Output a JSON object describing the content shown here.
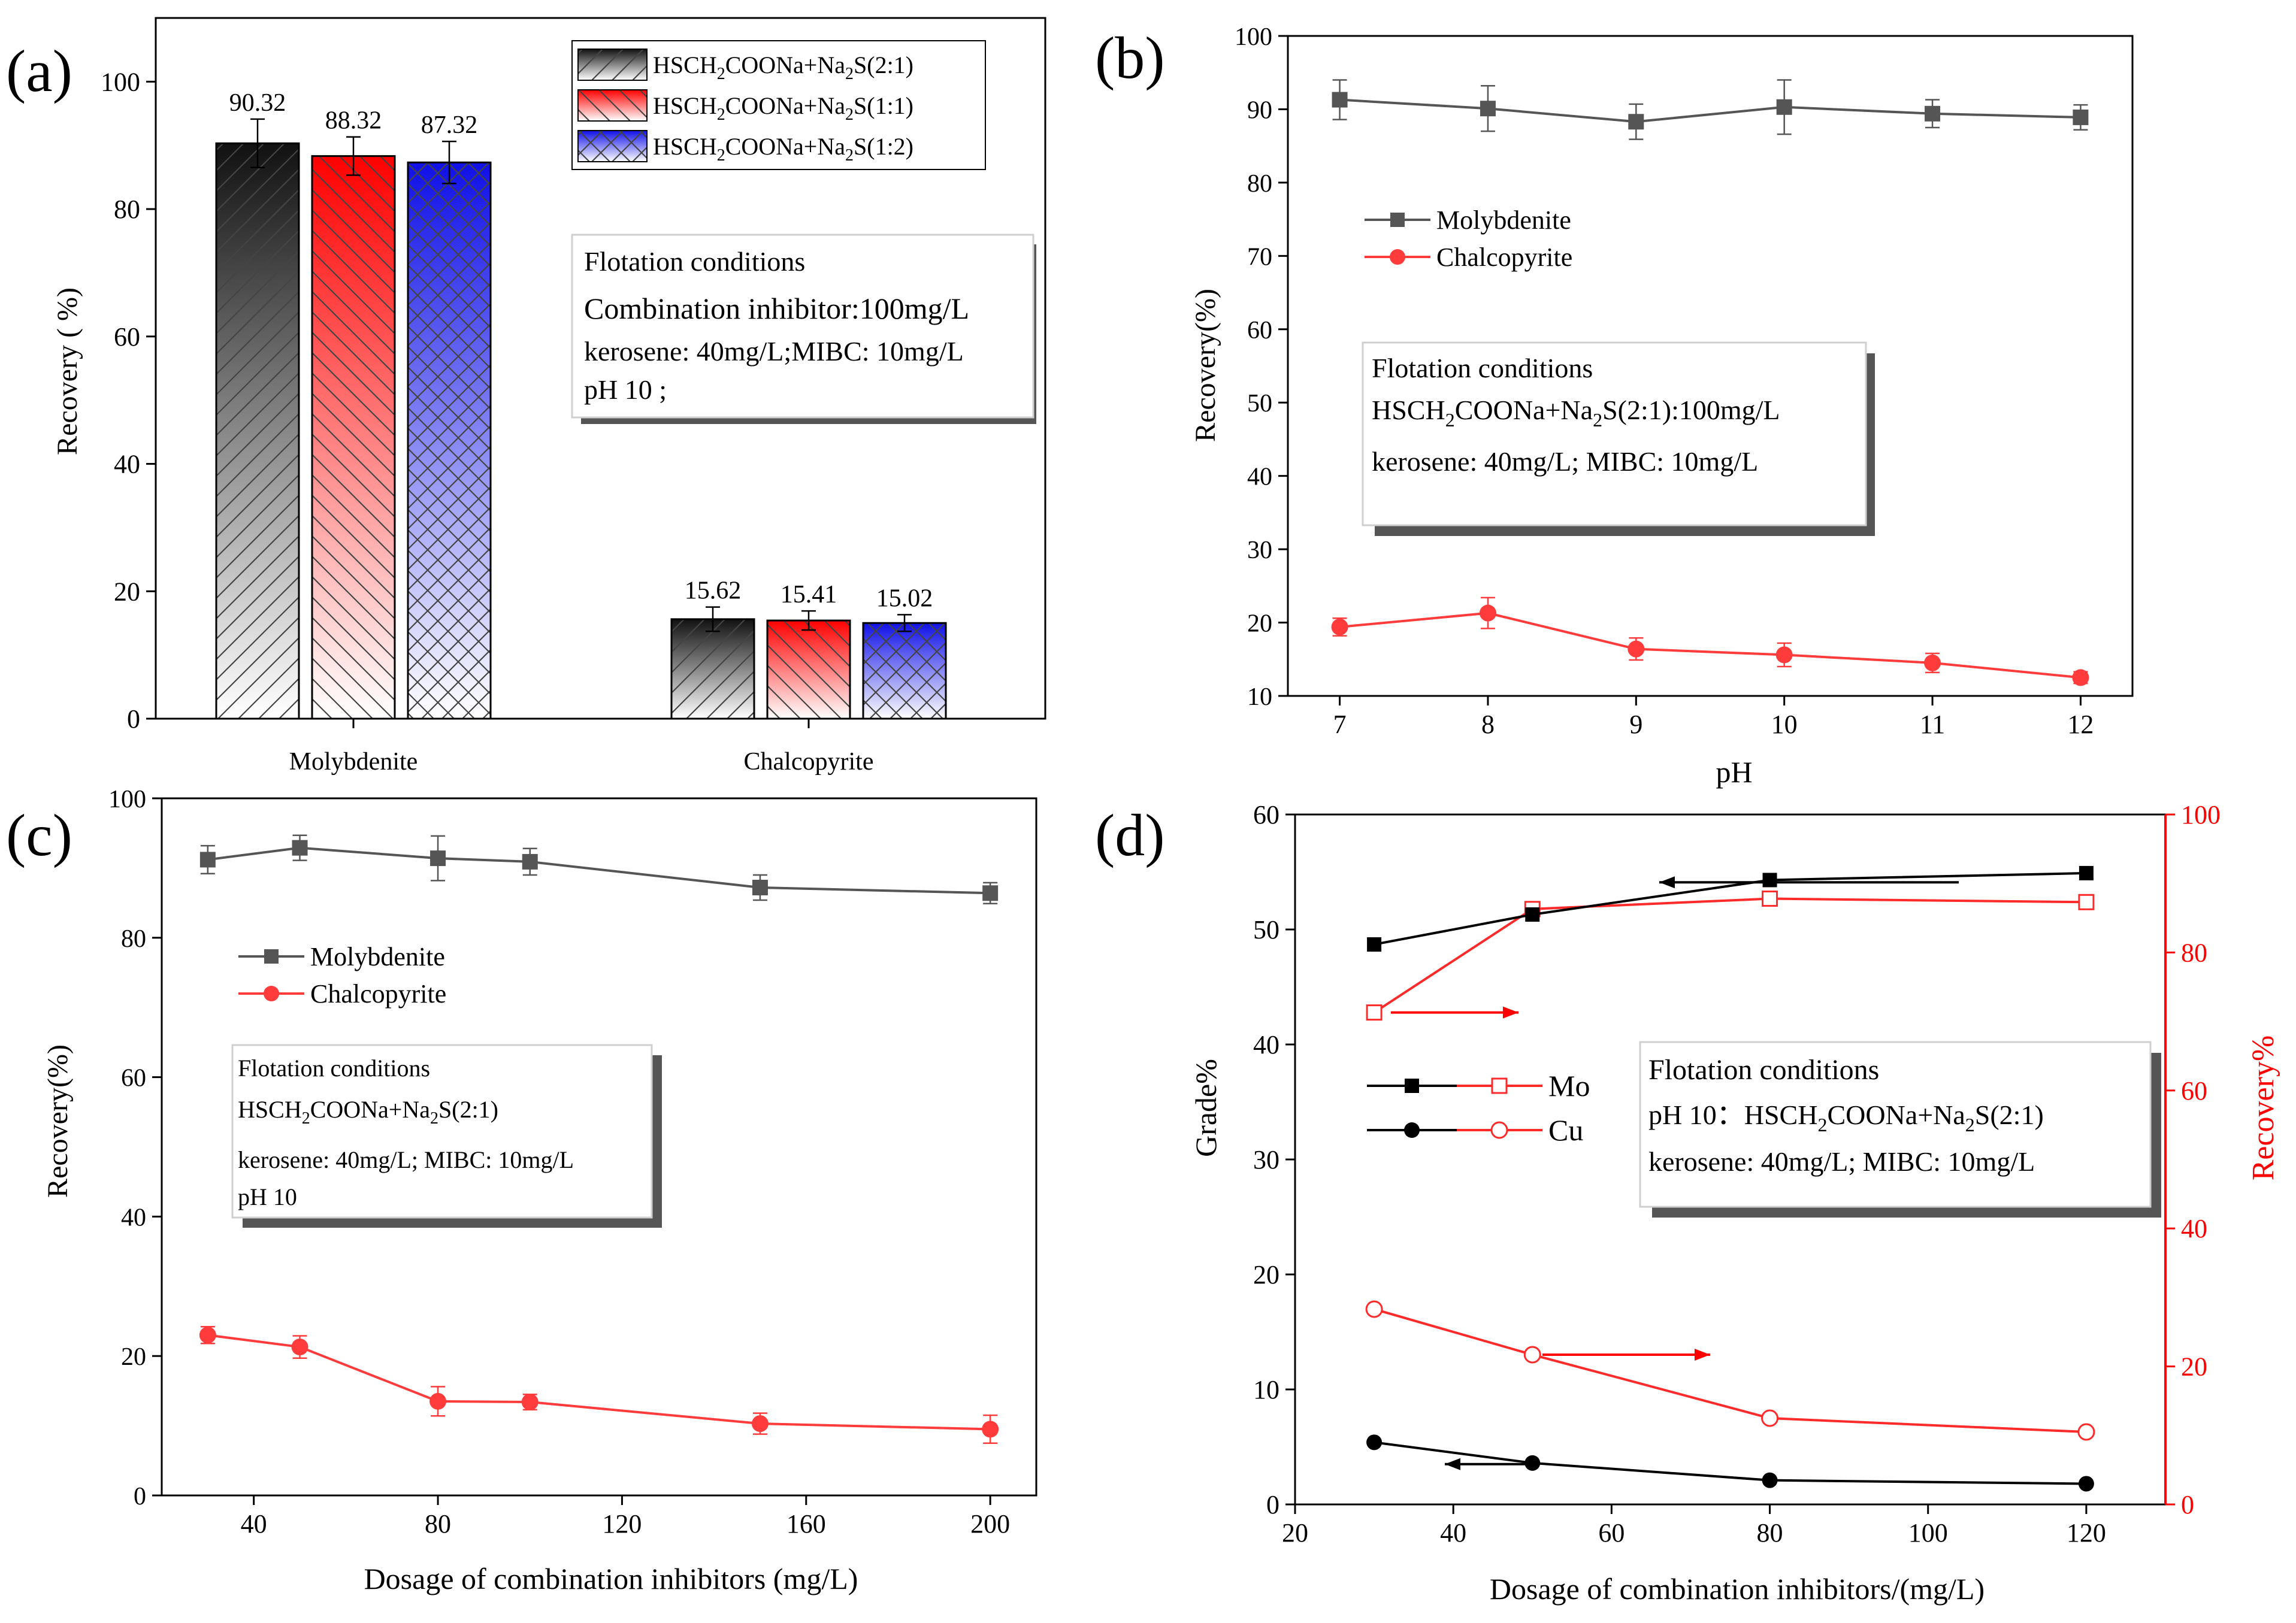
{
  "colors": {
    "axis": "#000000",
    "moly_line": "#555555",
    "chalco_line": "#ff3b3b",
    "red_axis": "#ff0000",
    "grade_line": "#000000",
    "bar_black": "#2b2b2b",
    "bar_red": "#ff2020",
    "bar_blue": "#2020ee"
  },
  "chart_data": [
    {
      "panel": "(a)",
      "type": "bar",
      "xlabel": "",
      "ylabel": "Recovery ( %)",
      "ylim": [
        0,
        110
      ],
      "yticks": [
        0,
        20,
        40,
        60,
        80,
        100
      ],
      "categories": [
        "Molybdenite",
        "Chalcopyrite"
      ],
      "series": [
        {
          "name": "HSCH2COONa+Na2S(2:1)",
          "name_main": "HSCH",
          "name_sub": "2",
          "name_mid": "COONa+Na",
          "name_sub2": "2",
          "name_tail": "S(2:1)",
          "values": [
            90.32,
            15.62
          ],
          "errors": [
            3.8,
            1.9
          ],
          "labels": [
            "90.32",
            "15.62"
          ],
          "color": "#2b2b2b",
          "pattern": "diag-right"
        },
        {
          "name": "HSCH2COONa+Na2S(1:1)",
          "name_main": "HSCH",
          "name_sub": "2",
          "name_mid": "COONa+Na",
          "name_sub2": "2",
          "name_tail": "S(1:1)",
          "values": [
            88.32,
            15.41
          ],
          "errors": [
            3.0,
            1.5
          ],
          "labels": [
            "88.32",
            "15.41"
          ],
          "color": "#ff2020",
          "pattern": "diag-left"
        },
        {
          "name": "HSCH2COONa+Na2S(1:2)",
          "name_main": "HSCH",
          "name_sub": "2",
          "name_mid": "COONa+Na",
          "name_sub2": "2",
          "name_tail": "S(1:2)",
          "values": [
            87.32,
            15.02
          ],
          "errors": [
            3.3,
            1.3
          ],
          "labels": [
            "87.32",
            "15.02"
          ],
          "color": "#2020ee",
          "pattern": "cross"
        }
      ],
      "legend_position": "top-right",
      "conditions_box": [
        "Flotation conditions",
        "Combination inhibitor:100mg/L",
        "kerosene: 40mg/L;MIBC:   10mg/L",
        "pH 10 ;"
      ]
    },
    {
      "panel": "(b)",
      "type": "line",
      "xlabel": "pH",
      "ylabel": "Recovery(%)",
      "xlim": [
        6.65,
        12.35
      ],
      "ylim": [
        10,
        100
      ],
      "xticks": [
        7,
        8,
        9,
        10,
        11,
        12
      ],
      "yticks": [
        10,
        20,
        30,
        40,
        50,
        60,
        70,
        80,
        90,
        100
      ],
      "x": [
        7,
        8,
        9,
        10,
        11,
        12
      ],
      "series": [
        {
          "name": "Molybdenite",
          "values": [
            91.3,
            90.1,
            88.3,
            90.3,
            89.4,
            88.9
          ],
          "errors": [
            2.7,
            3.1,
            2.4,
            3.7,
            1.9,
            1.7
          ],
          "color": "#555555",
          "marker": "square"
        },
        {
          "name": "Chalcopyrite",
          "values": [
            19.4,
            21.3,
            16.4,
            15.6,
            14.5,
            12.5
          ],
          "errors": [
            1.2,
            2.1,
            1.5,
            1.6,
            1.3,
            0.8
          ],
          "color": "#ff3b3b",
          "marker": "circle"
        }
      ],
      "legend_position": "center-left",
      "conditions_box": {
        "title": "Flotation conditions",
        "line2_main": "HSCH",
        "line2_sub": "2",
        "line2_mid": "COONa+Na",
        "line2_sub2": "2",
        "line2_tail": "S(2:1):100mg/L",
        "line3": "kerosene: 40mg/L;   MIBC:   10mg/L"
      }
    },
    {
      "panel": "(c)",
      "type": "line",
      "xlabel": "Dosage of combination inhibitors (mg/L)",
      "ylabel": "Recovery(%)",
      "xlim": [
        20,
        210
      ],
      "ylim": [
        0,
        100
      ],
      "xticks": [
        40,
        80,
        120,
        160,
        200
      ],
      "yticks": [
        0,
        20,
        40,
        60,
        80,
        100
      ],
      "x": [
        30,
        50,
        80,
        100,
        150,
        200
      ],
      "series": [
        {
          "name": "Molybdenite",
          "values": [
            91.2,
            92.9,
            91.4,
            90.9,
            87.2,
            86.4
          ],
          "errors": [
            2.0,
            1.8,
            3.2,
            1.9,
            1.8,
            1.5
          ],
          "color": "#555555",
          "marker": "square"
        },
        {
          "name": "Chalcopyrite",
          "values": [
            23.0,
            21.3,
            13.5,
            13.4,
            10.3,
            9.5
          ],
          "errors": [
            1.2,
            1.6,
            2.1,
            1.1,
            1.5,
            2.0
          ],
          "color": "#ff3b3b",
          "marker": "circle"
        }
      ],
      "legend_position": "center-left",
      "conditions_box": {
        "title": "Flotation conditions",
        "line2_main": "HSCH",
        "line2_sub": "2",
        "line2_mid": "COONa+Na",
        "line2_sub2": "2",
        "line2_tail": "S(2:1)",
        "line3": "kerosene: 40mg/L;   MIBC:   10mg/L",
        "line4": "pH 10"
      }
    },
    {
      "panel": "(d)",
      "type": "line",
      "xlabel": "Dosage of combination inhibitors/(mg/L)",
      "ylabel": "Grade%",
      "ylabel_right": "Recovery%",
      "xlim": [
        20,
        130
      ],
      "ylim": [
        0,
        60
      ],
      "ylim_right": [
        0,
        100
      ],
      "xticks": [
        20,
        40,
        60,
        80,
        100,
        120
      ],
      "yticks": [
        0,
        10,
        20,
        30,
        40,
        50,
        60
      ],
      "yticks_right": [
        0,
        20,
        40,
        60,
        80,
        100
      ],
      "x": [
        30,
        50,
        80,
        120
      ],
      "grade_series": [
        {
          "name": "Mo",
          "values": [
            48.7,
            51.3,
            54.3,
            54.9
          ],
          "marker": "square"
        },
        {
          "name": "Cu",
          "values": [
            5.4,
            3.6,
            2.1,
            1.8
          ],
          "marker": "circle"
        }
      ],
      "recovery_series": [
        {
          "name": "Mo",
          "values": [
            71.3,
            86.3,
            87.8,
            87.3
          ],
          "marker": "open-square"
        },
        {
          "name": "Cu",
          "values": [
            28.3,
            21.7,
            12.5,
            10.5
          ],
          "marker": "open-circle"
        }
      ],
      "legend_position": "center-left",
      "conditions_box": {
        "title": "Flotation conditions",
        "line2_main": "pH 10：HSCH",
        "line2_sub": "2",
        "line2_mid": "COONa+Na",
        "line2_sub2": "2",
        "line2_tail": "S(2:1)",
        "line3": "kerosene: 40mg/L;   MIBC:   10mg/L"
      }
    }
  ],
  "panel_labels": [
    "(a)",
    "(b)",
    "(c)",
    "(d)"
  ]
}
